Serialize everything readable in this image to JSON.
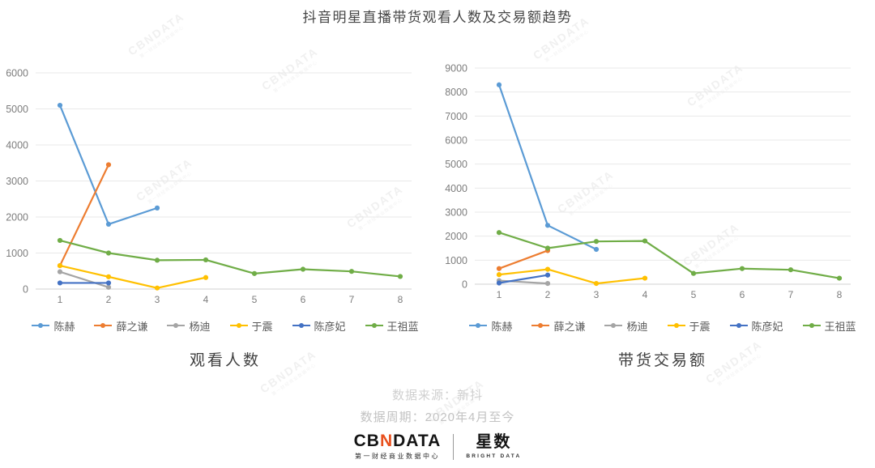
{
  "title": "抖音明星直播带货观看人数及交易额趋势",
  "watermark": {
    "line1": "CBNDATA",
    "line2": "第一财经商业数据中心"
  },
  "footer": {
    "source_line1": "数据来源：新抖",
    "source_line2": "数据周期：2020年4月至今",
    "logo_cbndata": {
      "text_cb": "CB",
      "text_n": "N",
      "text_data": "DATA",
      "subtitle": "第一财经商业数据中心",
      "accent": "#e8501e"
    },
    "logo_xingshu": {
      "title": "星数",
      "subtitle": "BRIGHT DATA"
    }
  },
  "chart_data": [
    {
      "type": "line",
      "title": "观看人数",
      "x": [
        1,
        2,
        3,
        4,
        5,
        6,
        7,
        8
      ],
      "xlabel": "",
      "ylabel": "",
      "ylim": [
        0,
        6000
      ],
      "ytick_step": 1000,
      "grid": true,
      "legend_position": "bottom",
      "series": [
        {
          "name": "陈赫",
          "color": "#5B9BD5",
          "values": [
            5100,
            1800,
            2250,
            null,
            null,
            null,
            null,
            null
          ]
        },
        {
          "name": "薛之谦",
          "color": "#ED7D31",
          "values": [
            650,
            3450,
            null,
            null,
            null,
            null,
            null,
            null
          ]
        },
        {
          "name": "杨迪",
          "color": "#A5A5A5",
          "values": [
            480,
            50,
            null,
            null,
            null,
            null,
            null,
            null
          ]
        },
        {
          "name": "于震",
          "color": "#FFC000",
          "values": [
            650,
            340,
            30,
            320,
            null,
            null,
            null,
            null
          ]
        },
        {
          "name": "陈彦妃",
          "color": "#4472C4",
          "values": [
            170,
            170,
            null,
            null,
            null,
            null,
            null,
            null
          ]
        },
        {
          "name": "王祖蓝",
          "color": "#70AD47",
          "values": [
            1350,
            1000,
            800,
            810,
            430,
            550,
            490,
            350
          ]
        }
      ]
    },
    {
      "type": "line",
      "title": "带货交易额",
      "x": [
        1,
        2,
        3,
        4,
        5,
        6,
        7,
        8
      ],
      "xlabel": "",
      "ylabel": "",
      "ylim": [
        0,
        9000
      ],
      "ytick_step": 1000,
      "grid": true,
      "legend_position": "bottom",
      "series": [
        {
          "name": "陈赫",
          "color": "#5B9BD5",
          "values": [
            8300,
            2450,
            1450,
            null,
            null,
            null,
            null,
            null
          ]
        },
        {
          "name": "薛之谦",
          "color": "#ED7D31",
          "values": [
            650,
            1400,
            null,
            null,
            null,
            null,
            null,
            null
          ]
        },
        {
          "name": "杨迪",
          "color": "#A5A5A5",
          "values": [
            150,
            30,
            null,
            null,
            null,
            null,
            null,
            null
          ]
        },
        {
          "name": "于震",
          "color": "#FFC000",
          "values": [
            400,
            620,
            30,
            250,
            null,
            null,
            null,
            null
          ]
        },
        {
          "name": "陈彦妃",
          "color": "#4472C4",
          "values": [
            50,
            380,
            null,
            null,
            null,
            null,
            null,
            null
          ]
        },
        {
          "name": "王祖蓝",
          "color": "#70AD47",
          "values": [
            2150,
            1500,
            1780,
            1800,
            450,
            650,
            600,
            250
          ]
        }
      ]
    }
  ]
}
